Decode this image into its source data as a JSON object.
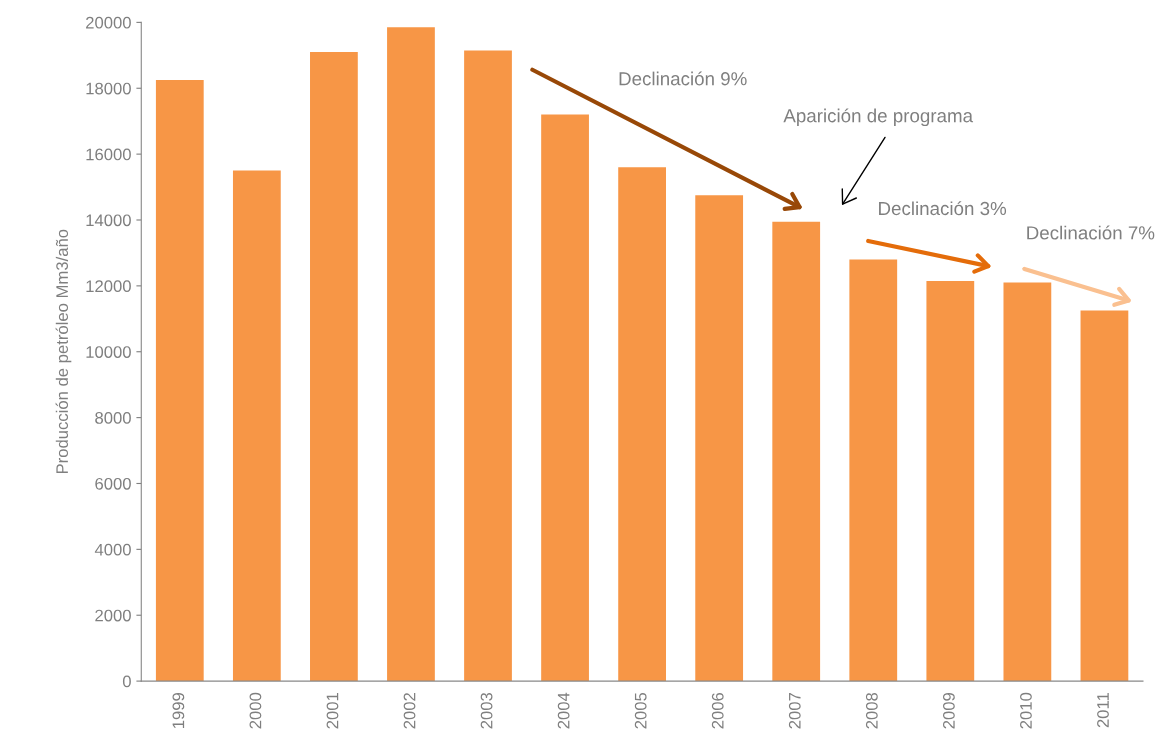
{
  "chart_data": {
    "type": "bar",
    "ylabel": "Producción de petróleo Mm3/año",
    "categories": [
      "1999",
      "2000",
      "2001",
      "2002",
      "2003",
      "2004",
      "2005",
      "2006",
      "2007",
      "2008",
      "2009",
      "2010",
      "2011"
    ],
    "values": [
      18250,
      15500,
      19100,
      19850,
      19150,
      17200,
      15600,
      14750,
      13950,
      12800,
      12150,
      12100,
      11250
    ],
    "color": "#f79646",
    "ylim": [
      0,
      20000
    ],
    "yticks": [
      0,
      2000,
      4000,
      6000,
      8000,
      10000,
      12000,
      14000,
      16000,
      18000,
      20000
    ],
    "grid": false,
    "legend": false,
    "annotations": [
      "Declinación 9%",
      "Aparición de programa",
      "Declinación 3%",
      "Declinación 7%"
    ]
  }
}
